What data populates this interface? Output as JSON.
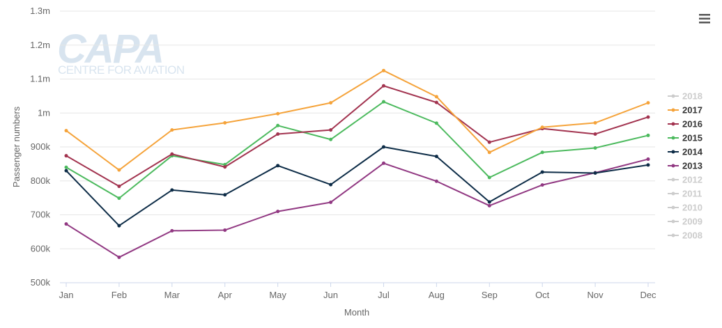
{
  "watermark": {
    "brand": "CAPA",
    "tagline": "CENTRE FOR AVIATION"
  },
  "menu_icon": "hamburger-menu-icon",
  "chart_data": {
    "type": "line",
    "title": "",
    "xlabel": "Month",
    "ylabel": "Passenger numbers",
    "categories": [
      "Jan",
      "Feb",
      "Mar",
      "Apr",
      "May",
      "Jun",
      "Jul",
      "Aug",
      "Sep",
      "Oct",
      "Nov",
      "Dec"
    ],
    "ylim": [
      500000,
      1300000
    ],
    "yticks": [
      {
        "value": 500000,
        "label": "500k"
      },
      {
        "value": 600000,
        "label": "600k"
      },
      {
        "value": 700000,
        "label": "700k"
      },
      {
        "value": 800000,
        "label": "800k"
      },
      {
        "value": 900000,
        "label": "900k"
      },
      {
        "value": 1000000,
        "label": "1m"
      },
      {
        "value": 1100000,
        "label": "1.1m"
      },
      {
        "value": 1200000,
        "label": "1.2m"
      },
      {
        "value": 1300000,
        "label": "1.3m"
      }
    ],
    "grid": true,
    "legend_position": "right",
    "series": [
      {
        "name": "2017",
        "color": "#f5a33a",
        "visible": true,
        "values": [
          948000,
          832000,
          950000,
          971000,
          998000,
          1030000,
          1125000,
          1048000,
          884000,
          958000,
          971000,
          1030000
        ]
      },
      {
        "name": "2016",
        "color": "#a2334f",
        "visible": true,
        "values": [
          874000,
          784000,
          879000,
          841000,
          938000,
          950000,
          1080000,
          1031000,
          914000,
          954000,
          938000,
          988000
        ]
      },
      {
        "name": "2015",
        "color": "#4cba5e",
        "visible": true,
        "values": [
          840000,
          749000,
          874000,
          848000,
          963000,
          922000,
          1033000,
          970000,
          810000,
          884000,
          897000,
          934000
        ]
      },
      {
        "name": "2014",
        "color": "#0d2c47",
        "visible": true,
        "values": [
          830000,
          668000,
          773000,
          759000,
          845000,
          789000,
          900000,
          872000,
          738000,
          826000,
          823000,
          847000
        ]
      },
      {
        "name": "2013",
        "color": "#913882",
        "visible": true,
        "values": [
          673000,
          575000,
          653000,
          655000,
          710000,
          737000,
          852000,
          799000,
          727000,
          788000,
          824000,
          864000
        ]
      }
    ],
    "legend": [
      {
        "name": "2018",
        "color": "#cccccc",
        "active": false
      },
      {
        "name": "2017",
        "color": "#f5a33a",
        "active": true
      },
      {
        "name": "2016",
        "color": "#a2334f",
        "active": true
      },
      {
        "name": "2015",
        "color": "#4cba5e",
        "active": true
      },
      {
        "name": "2014",
        "color": "#0d2c47",
        "active": true
      },
      {
        "name": "2013",
        "color": "#913882",
        "active": true
      },
      {
        "name": "2012",
        "color": "#cccccc",
        "active": false
      },
      {
        "name": "2011",
        "color": "#cccccc",
        "active": false
      },
      {
        "name": "2010",
        "color": "#cccccc",
        "active": false
      },
      {
        "name": "2009",
        "color": "#cccccc",
        "active": false
      },
      {
        "name": "2008",
        "color": "#cccccc",
        "active": false
      }
    ]
  }
}
